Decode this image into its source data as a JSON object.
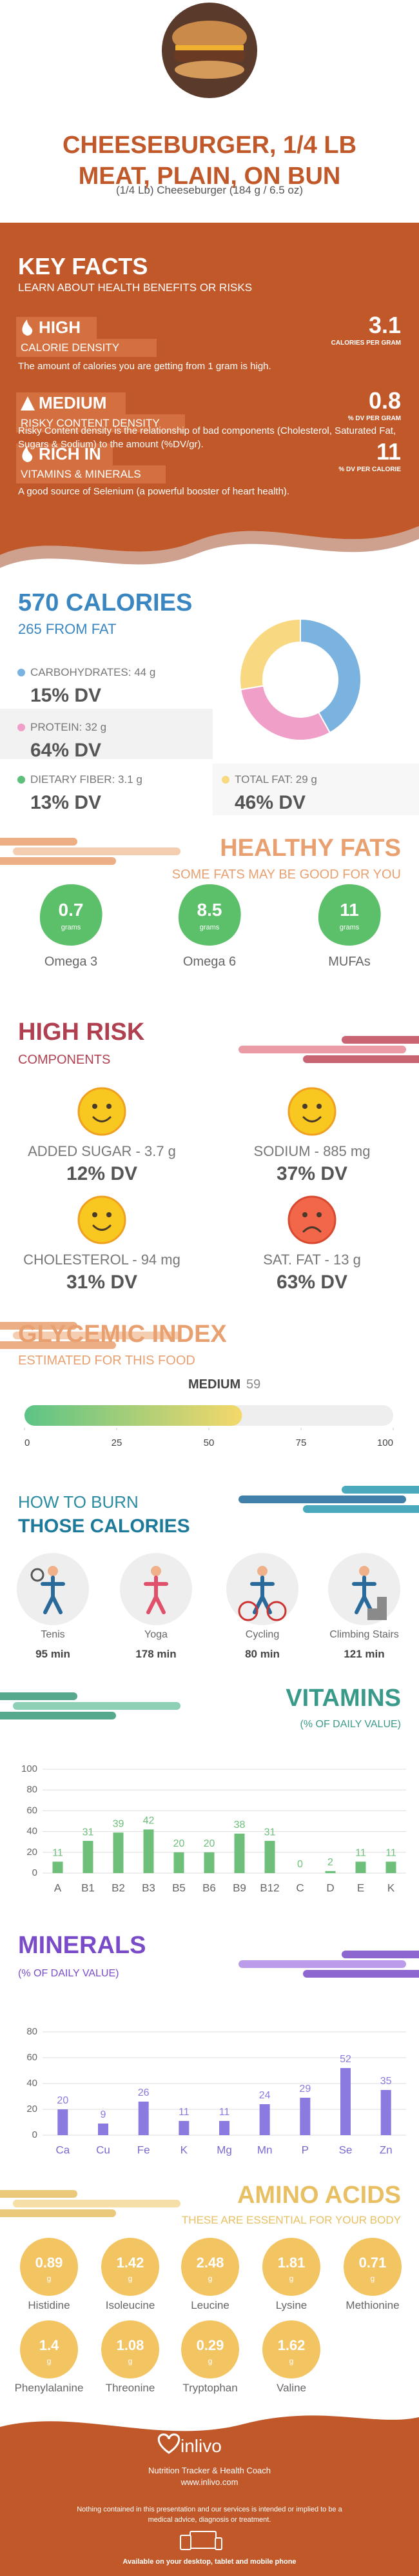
{
  "header": {
    "title": "CHEESEBURGER, 1/4 LB MEAT, PLAIN, ON BUN",
    "subtitle": "(1/4 Lb) Cheeseburger (184 g / 6.5 oz)"
  },
  "key_facts": {
    "title": "KEY FACTS",
    "subtitle": "LEARN ABOUT HEALTH BENEFITS OR RISKS",
    "items": [
      {
        "level": "HIGH",
        "label": "CALORIE DENSITY",
        "value": 3.1,
        "unit": "CALORIES PER GRAM",
        "description": "The amount of calories you are getting from 1 gram is high."
      },
      {
        "level": "MEDIUM",
        "label": "RISKY CONTENT DENSITY",
        "value": 0.8,
        "unit": "% DV PER GRAM",
        "description": "Risky Content density is the relationship of bad components (Cholesterol, Saturated Fat, Sugars & Sodium) to the amount (%DV/gr)."
      },
      {
        "level": "RICH IN",
        "label": "VITAMINS & MINERALS",
        "value": 11,
        "unit": "% DV PER CALORIE",
        "description": "A good source of Selenium (a powerful booster of heart health)."
      }
    ]
  },
  "calories": {
    "title": "570 CALORIES",
    "subtitle": "265 FROM FAT",
    "nutrients": [
      {
        "label": "CARBOHYDRATES: 44 g",
        "dv": "15% DV",
        "color": "#7ab3e0"
      },
      {
        "label": "PROTEIN: 32 g",
        "dv": "64% DV",
        "color": "#f0a0c8"
      },
      {
        "label": "DIETARY FIBER: 3.1 g",
        "dv": "13% DV",
        "color": "#5cbf7a"
      },
      {
        "label": "TOTAL FAT: 29 g",
        "dv": "46% DV",
        "color": "#f8d880"
      }
    ],
    "donut": {
      "values": [
        44,
        32,
        29
      ],
      "colors": [
        "#7ab3e0",
        "#f0a0c8",
        "#f8d880"
      ]
    }
  },
  "healthy_fats": {
    "title": "HEALTHY FATS",
    "subtitle": "SOME FATS MAY BE GOOD FOR YOU",
    "unit": "grams",
    "items": [
      {
        "value": 0.7,
        "name": "Omega 3"
      },
      {
        "value": 8.5,
        "name": "Omega 6"
      },
      {
        "value": 11,
        "name": "MUFAs"
      }
    ]
  },
  "high_risk": {
    "title": "HIGH RISK",
    "subtitle": "COMPONENTS",
    "items": [
      {
        "label": "ADDED SUGAR - 3.7 g",
        "dv": "12% DV",
        "mood": "happy"
      },
      {
        "label": "SODIUM - 885 mg",
        "dv": "37% DV",
        "mood": "happy"
      },
      {
        "label": "CHOLESTEROL - 94 mg",
        "dv": "31% DV",
        "mood": "happy"
      },
      {
        "label": "SAT. FAT - 13 g",
        "dv": "63% DV",
        "mood": "sad"
      }
    ]
  },
  "glycemic": {
    "title": "GLYCEMIC INDEX",
    "subtitle": "ESTIMATED FOR THIS FOOD",
    "level": "MEDIUM",
    "value": 59,
    "lim": [
      0,
      100
    ],
    "ticks": [
      0,
      25,
      50,
      75,
      100
    ]
  },
  "burn": {
    "title": "HOW TO BURN",
    "title2": "THOSE CALORIES",
    "activities": [
      {
        "name": "Tenis",
        "time": "95 min"
      },
      {
        "name": "Yoga",
        "time": "178 min"
      },
      {
        "name": "Cycling",
        "time": "80 min"
      },
      {
        "name": "Climbing Stairs",
        "time": "121 min"
      }
    ]
  },
  "vitamins": {
    "title": "VITAMINS",
    "subtitle": "(% OF DAILY VALUE)",
    "type": "bar",
    "color": "#6dbf7a",
    "categories": [
      "A",
      "B1",
      "B2",
      "B3",
      "B5",
      "B6",
      "B9",
      "B12",
      "C",
      "D",
      "E",
      "K"
    ],
    "values": [
      11,
      31,
      39,
      42,
      20,
      20,
      38,
      31,
      0,
      2,
      11,
      11
    ],
    "ylim": [
      0,
      100
    ],
    "yticks": [
      0,
      20,
      40,
      60,
      80,
      100
    ],
    "grid": true
  },
  "minerals": {
    "title": "MINERALS",
    "subtitle": "(% OF DAILY VALUE)",
    "type": "bar",
    "color": "#8b7ae0",
    "categories": [
      "Ca",
      "Cu",
      "Fe",
      "K",
      "Mg",
      "Mn",
      "P",
      "Se",
      "Zn"
    ],
    "values": [
      20,
      9,
      26,
      11,
      11,
      24,
      29,
      52,
      35
    ],
    "ylim": [
      0,
      80
    ],
    "yticks": [
      0,
      20,
      40,
      60,
      80
    ],
    "grid": true
  },
  "amino_acids": {
    "title": "AMINO ACIDS",
    "subtitle": "THESE ARE ESSENTIAL FOR YOUR BODY",
    "unit": "g",
    "items": [
      {
        "value": 0.89,
        "name": "Histidine"
      },
      {
        "value": 1.42,
        "name": "Isoleucine"
      },
      {
        "value": 2.48,
        "name": "Leucine"
      },
      {
        "value": 1.81,
        "name": "Lysine"
      },
      {
        "value": 0.71,
        "name": "Methionine"
      },
      {
        "value": 1.4,
        "name": "Phenylalanine"
      },
      {
        "value": 1.08,
        "name": "Threonine"
      },
      {
        "value": 0.29,
        "name": "Tryptophan"
      },
      {
        "value": 1.62,
        "name": "Valine"
      }
    ]
  },
  "footer": {
    "brand": "inlivo",
    "tagline": "Nutrition Tracker & Health Coach",
    "url": "www.inlivo.com",
    "disclaimer": "Nothing contained in this presentation and our services is intended or implied to be a medical advice, diagnosis or treatment.",
    "platforms": "Available on your desktop, tablet and mobile phone"
  }
}
